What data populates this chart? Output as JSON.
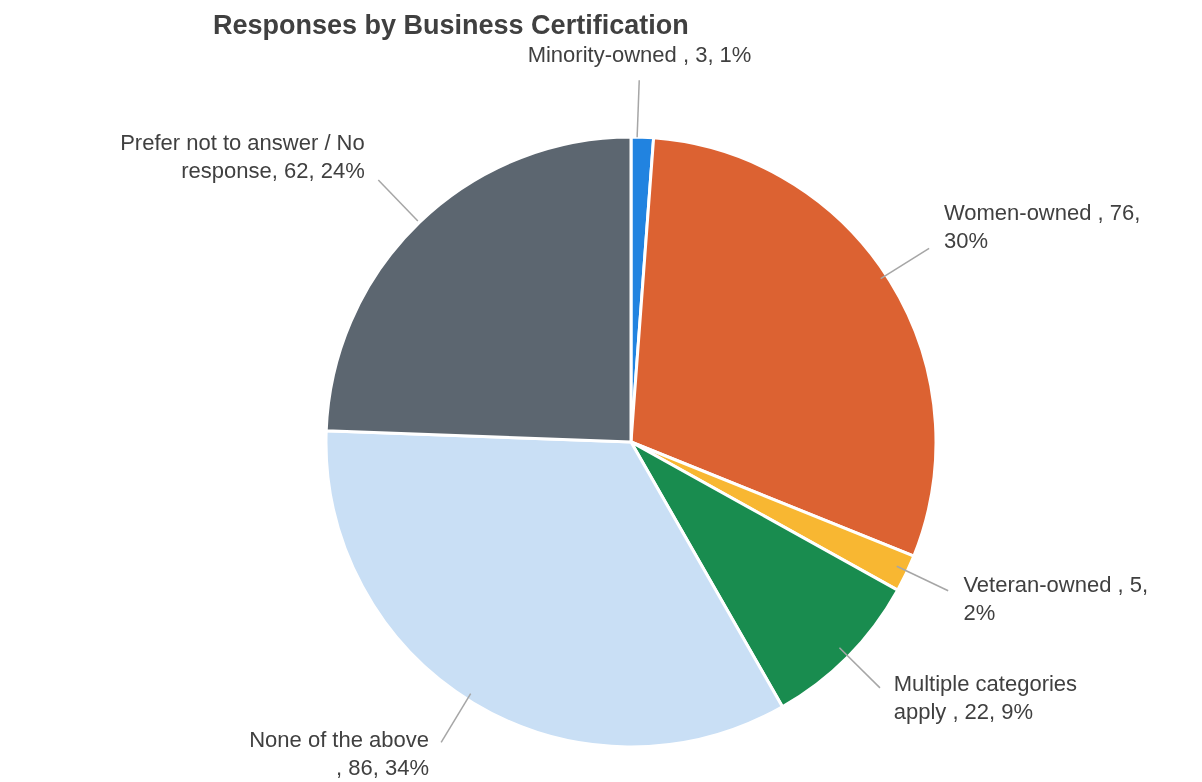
{
  "chart_data": {
    "type": "pie",
    "title": "Responses by Business Certification",
    "categories": [
      "Minority-owned ",
      "Women-owned ",
      "Veteran-owned ",
      "Multiple categories apply ",
      "None of the above\n",
      "Prefer not to answer / No response"
    ],
    "values": [
      3,
      76,
      5,
      22,
      86,
      62
    ],
    "value_labels": [
      ", 3, 1%",
      ", 76, 30%",
      ", 5, 2%",
      ", 22, 9%",
      ", 86, 34%",
      ", 62, 24%"
    ],
    "colors": [
      "#2183e0",
      "#dc6232",
      "#f8b732",
      "#198c4f",
      "#c9dff5",
      "#5c6670"
    ]
  }
}
